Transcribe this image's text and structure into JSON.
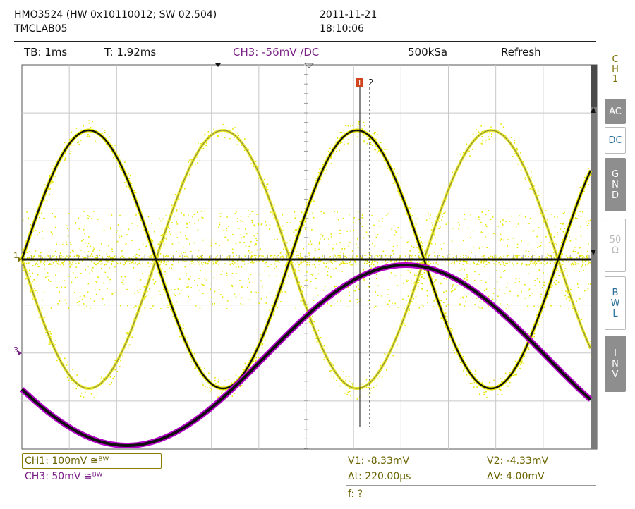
{
  "header": {
    "device": "HMO3524 (HW 0x10110012; SW 02.504)",
    "station": "TMCLAB05",
    "date": "2011-11-21",
    "time": "18:10:06"
  },
  "status_bar": {
    "timebase": "TB: 1ms",
    "trigger_time": "T: 1.92ms",
    "trigger_channel": "CH3: -56mV ∕DC",
    "sample_rate": "500kSa",
    "mode": "Refresh"
  },
  "side_menu": {
    "channel_label": [
      "C",
      "H",
      "1"
    ],
    "buttons": [
      {
        "label": "AC",
        "active": false
      },
      {
        "label": "DC",
        "active": true
      },
      {
        "label": "G\nN\nD",
        "active": false
      },
      {
        "label": "50\nΩ",
        "active": false
      },
      {
        "label": "B\nW\nL",
        "active": false
      },
      {
        "label": "I\nN\nV",
        "active": false
      }
    ]
  },
  "markers": {
    "ch1": "1",
    "ch3": "3",
    "cursor1": "1",
    "cursor2": "2"
  },
  "readouts": {
    "ch1": "CH1: 100mV ≅ᴮᵂ",
    "ch3": "CH3: 50mV ≅ᴮᵂ",
    "v1": "V1: -8.33mV",
    "v2": "V2: -4.33mV",
    "dt": "Δt: 220.00µs",
    "dv": "ΔV: 4.00mV",
    "freq": "f: ?"
  },
  "colors": {
    "ch1": "#e6e600",
    "ch3": "#b400c8",
    "trace_core": "#111111",
    "grid": "#c8c8c8"
  }
}
